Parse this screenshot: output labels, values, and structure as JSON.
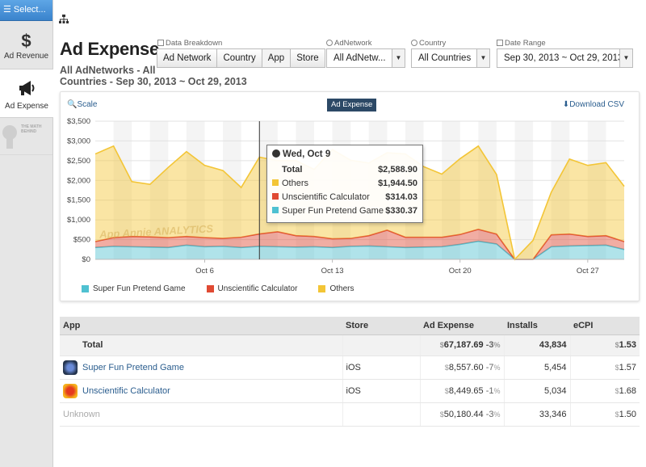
{
  "sidebar": {
    "select_label": "☰ Select...",
    "items": [
      {
        "label": "Ad Revenue",
        "icon": "dollar-network-icon",
        "glyph": "$"
      },
      {
        "label": "Ad Expense",
        "icon": "megaphone-icon",
        "glyph": "📢"
      }
    ],
    "logo_text": "THE MATH BEHIND"
  },
  "header": {
    "title": "Ad Expense",
    "subtitle_line1": "All AdNetworks - All",
    "subtitle_line2": "Countries - Sep 30, 2013 ~ Oct 29, 2013"
  },
  "filters": {
    "breakdown_label": "Data Breakdown",
    "breakdown_buttons": [
      "Ad Network",
      "Country",
      "App",
      "Store"
    ],
    "adnetwork_label": "AdNetwork",
    "adnetwork_value": "All AdNetw...",
    "country_label": "Country",
    "country_value": "All Countries",
    "daterange_label": "Date Range",
    "daterange_value": "Sep 30, 2013 ~ Oct 29, 2013"
  },
  "chart_panel": {
    "scale_label": "Scale",
    "series_tag": "Ad Expense",
    "csv_label": "Download CSV",
    "watermark": "App Annie ANALYTICS"
  },
  "chart_data": {
    "type": "area",
    "stacked": true,
    "x": [
      "Sep 30",
      "Oct 1",
      "Oct 2",
      "Oct 3",
      "Oct 4",
      "Oct 5",
      "Oct 6",
      "Oct 7",
      "Oct 8",
      "Oct 9",
      "Oct 10",
      "Oct 11",
      "Oct 12",
      "Oct 13",
      "Oct 14",
      "Oct 15",
      "Oct 16",
      "Oct 17",
      "Oct 18",
      "Oct 19",
      "Oct 20",
      "Oct 21",
      "Oct 22",
      "Oct 23",
      "Oct 24",
      "Oct 25",
      "Oct 26",
      "Oct 27",
      "Oct 28",
      "Oct 29"
    ],
    "x_tick_labels": [
      {
        "index": 6,
        "label": "Oct 6"
      },
      {
        "index": 13,
        "label": "Oct 13"
      },
      {
        "index": 20,
        "label": "Oct 20"
      },
      {
        "index": 27,
        "label": "Oct 27"
      }
    ],
    "series": [
      {
        "name": "Super Fun Pretend Game",
        "color": "#4fc1d1",
        "values": [
          300,
          330,
          320,
          310,
          300,
          360,
          320,
          330,
          300,
          330,
          320,
          310,
          320,
          300,
          330,
          340,
          320,
          300,
          310,
          320,
          380,
          460,
          390,
          0,
          0,
          320,
          340,
          350,
          360,
          250
        ]
      },
      {
        "name": "Unscientific Calculator",
        "color": "#e04a33",
        "values": [
          150,
          220,
          260,
          260,
          250,
          220,
          230,
          200,
          260,
          314,
          380,
          290,
          260,
          220,
          200,
          260,
          420,
          260,
          250,
          240,
          250,
          300,
          250,
          0,
          0,
          300,
          300,
          230,
          240,
          200
        ]
      },
      {
        "name": "Others",
        "color": "#f3c536",
        "values": [
          2220,
          2320,
          1390,
          1330,
          1780,
          2150,
          1830,
          1720,
          1260,
          1945,
          1800,
          1900,
          1700,
          2260,
          1980,
          1840,
          1960,
          2110,
          1790,
          1600,
          1920,
          2110,
          1510,
          0,
          480,
          1080,
          1900,
          1800,
          1850,
          1400
        ]
      }
    ],
    "ylim": [
      0,
      3500
    ],
    "y_ticks": [
      "$0",
      "$500",
      "$1,000",
      "$1,500",
      "$2,000",
      "$2,500",
      "$3,000",
      "$3,500"
    ],
    "hover_index": 9,
    "legend": [
      "Super Fun Pretend Game",
      "Unscientific Calculator",
      "Others"
    ],
    "legend_position": "bottom-left",
    "grid": true
  },
  "tooltip": {
    "date": "Wed, Oct 9",
    "total_label": "Total",
    "total_value": "$2,588.90",
    "rows": [
      {
        "label": "Others",
        "value": "$1,944.50",
        "color": "#f3c536"
      },
      {
        "label": "Unscientific Calculator",
        "value": "$314.03",
        "color": "#e04a33"
      },
      {
        "label": "Super Fun Pretend Game",
        "value": "$330.37",
        "color": "#4fc1d1"
      }
    ]
  },
  "table": {
    "headers": {
      "app": "App",
      "store": "Store",
      "expense": "Ad Expense",
      "installs": "Installs",
      "ecpi": "eCPI"
    },
    "currency": "$",
    "pct_sign": "%",
    "total": {
      "label": "Total",
      "expense": "67,187.69",
      "pct": "-3",
      "installs": "43,834",
      "ecpi": "1.53"
    },
    "rows": [
      {
        "name": "Super Fun Pretend Game",
        "store": "iOS",
        "expense": "8,557.60",
        "pct": "-7",
        "installs": "5,454",
        "ecpi": "1.57"
      },
      {
        "name": "Unscientific Calculator",
        "store": "iOS",
        "expense": "8,449.65",
        "pct": "-1",
        "installs": "5,034",
        "ecpi": "1.68"
      },
      {
        "name": "Unknown",
        "store": "",
        "expense": "50,180.44",
        "pct": "-3",
        "installs": "33,346",
        "ecpi": "1.50"
      }
    ]
  }
}
